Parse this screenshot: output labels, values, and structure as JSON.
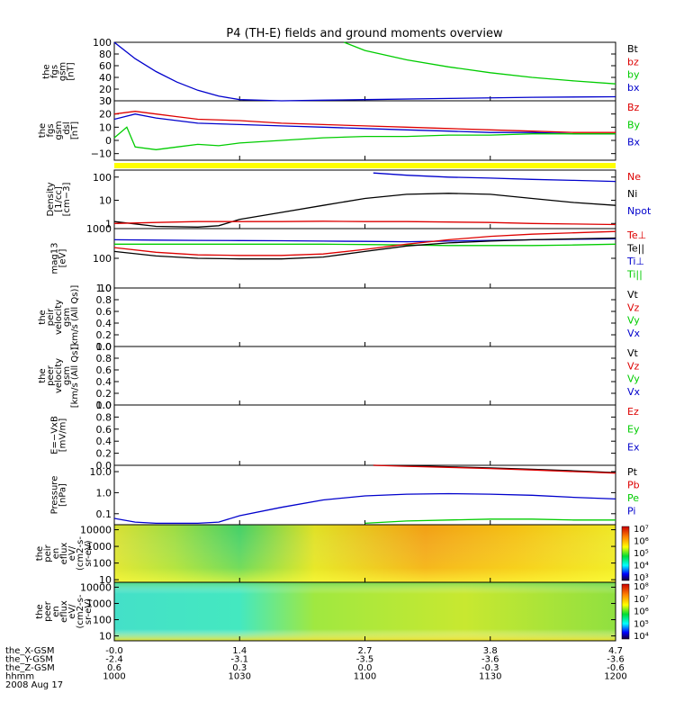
{
  "title": "P4 (TH-E) fields and ground moments overview",
  "colors": {
    "black": "#000000",
    "red": "#dd0000",
    "green": "#00cc00",
    "blue": "#0000cc",
    "yellow": "#ffff00"
  },
  "panels": [
    {
      "id": "p1",
      "ylabel": [
        "the",
        "fgs",
        "gsm",
        "[nT]"
      ],
      "ticks": [
        {
          "v": 0,
          "t": "0"
        },
        {
          "v": 20,
          "t": "20"
        },
        {
          "v": 40,
          "t": "40"
        },
        {
          "v": 60,
          "t": "60"
        },
        {
          "v": 80,
          "t": "80"
        },
        {
          "v": 100,
          "t": "100"
        }
      ],
      "legend": [
        {
          "t": "Bt",
          "c": "black"
        },
        {
          "t": "bz",
          "c": "red"
        },
        {
          "t": "by",
          "c": "green"
        },
        {
          "t": "bx",
          "c": "blue"
        }
      ]
    },
    {
      "id": "p2",
      "ylabel": [
        "the",
        "fgs",
        "gsm",
        "_dsl",
        "[nT]"
      ],
      "ticks": [
        {
          "v": -10,
          "t": "−10"
        },
        {
          "v": 0,
          "t": "0"
        },
        {
          "v": 10,
          "t": "10"
        },
        {
          "v": 20,
          "t": "20"
        },
        {
          "v": 30,
          "t": "30"
        }
      ],
      "legend": [
        {
          "t": "Bz",
          "c": "red"
        },
        {
          "t": "By",
          "c": "green"
        },
        {
          "t": "Bx",
          "c": "blue"
        }
      ]
    },
    {
      "id": "p3",
      "ylabel": [
        "Density",
        "[1/cc]",
        "[cm−3]"
      ],
      "ticks": [
        {
          "v": 1,
          "t": "1"
        },
        {
          "v": 10,
          "t": "10"
        },
        {
          "v": 100,
          "t": "100"
        }
      ],
      "legend": [
        {
          "t": "Ne",
          "c": "red"
        },
        {
          "t": "Ni",
          "c": "black"
        },
        {
          "t": "Npot",
          "c": "blue"
        }
      ]
    },
    {
      "id": "p4",
      "ylabel": [
        "mag13",
        "[eV]"
      ],
      "ticks": [
        {
          "v": 10,
          "t": "10"
        },
        {
          "v": 100,
          "t": "100"
        },
        {
          "v": 1000,
          "t": "1000"
        }
      ],
      "legend": [
        {
          "t": "Te⊥",
          "c": "red"
        },
        {
          "t": "Te||",
          "c": "black"
        },
        {
          "t": "Ti⊥",
          "c": "blue"
        },
        {
          "t": "Ti||",
          "c": "green"
        }
      ]
    },
    {
      "id": "p5",
      "ylabel": [
        "the",
        "peir",
        "velocity",
        "gsm",
        "[km/s (All Qs)]"
      ],
      "ticks": [
        {
          "v": 0,
          "t": "0.0"
        },
        {
          "v": 0.2,
          "t": "0.2"
        },
        {
          "v": 0.4,
          "t": "0.4"
        },
        {
          "v": 0.6,
          "t": "0.6"
        },
        {
          "v": 0.8,
          "t": "0.8"
        },
        {
          "v": 1,
          "t": "1.0"
        }
      ],
      "legend": [
        {
          "t": "Vt",
          "c": "black"
        },
        {
          "t": "Vz",
          "c": "red"
        },
        {
          "t": "Vy",
          "c": "green"
        },
        {
          "t": "Vx",
          "c": "blue"
        }
      ]
    },
    {
      "id": "p6",
      "ylabel": [
        "the",
        "peer",
        "velocity",
        "gsm",
        "[km/s (All Qs)]"
      ],
      "ticks": [
        {
          "v": 0,
          "t": "0.0"
        },
        {
          "v": 0.2,
          "t": "0.2"
        },
        {
          "v": 0.4,
          "t": "0.4"
        },
        {
          "v": 0.6,
          "t": "0.6"
        },
        {
          "v": 0.8,
          "t": "0.8"
        },
        {
          "v": 1,
          "t": "1.0"
        }
      ],
      "legend": [
        {
          "t": "Vt",
          "c": "black"
        },
        {
          "t": "Vz",
          "c": "red"
        },
        {
          "t": "Vy",
          "c": "green"
        },
        {
          "t": "Vx",
          "c": "blue"
        }
      ]
    },
    {
      "id": "p7",
      "ylabel": [
        "E=−VxB",
        "[mV/m]"
      ],
      "ticks": [
        {
          "v": 0,
          "t": "0.0"
        },
        {
          "v": 0.2,
          "t": "0.2"
        },
        {
          "v": 0.4,
          "t": "0.4"
        },
        {
          "v": 0.6,
          "t": "0.6"
        },
        {
          "v": 0.8,
          "t": "0.8"
        },
        {
          "v": 1,
          "t": "1.0"
        }
      ],
      "legend": [
        {
          "t": "Ez",
          "c": "red"
        },
        {
          "t": "Ey",
          "c": "green"
        },
        {
          "t": "Ex",
          "c": "blue"
        }
      ]
    },
    {
      "id": "p8",
      "ylabel": [
        "Pressure",
        "[nPa]"
      ],
      "ticks": [
        {
          "v": 0.1,
          "t": "0.1"
        },
        {
          "v": 1,
          "t": "1.0"
        },
        {
          "v": 10,
          "t": "10.0"
        }
      ],
      "legend": [
        {
          "t": "Pt",
          "c": "black"
        },
        {
          "t": "Pb",
          "c": "red"
        },
        {
          "t": "Pe",
          "c": "green"
        },
        {
          "t": "Pi",
          "c": "blue"
        }
      ]
    },
    {
      "id": "p9",
      "ylabel": [
        "the",
        "peir",
        "en",
        "eflux",
        "eV/",
        "(cm2-s-",
        "sr-eV)"
      ],
      "ticks": [
        {
          "v": 10,
          "t": "10"
        },
        {
          "v": 100,
          "t": "100"
        },
        {
          "v": 1000,
          "t": "1000"
        },
        {
          "v": 10000,
          "t": "10000"
        }
      ],
      "colorbar": [
        {
          "e": "3",
          "t": "10³"
        },
        {
          "e": "4",
          "t": "10⁴"
        },
        {
          "e": "5",
          "t": "10⁵"
        },
        {
          "e": "6",
          "t": "10⁶"
        },
        {
          "e": "7",
          "t": "10⁷"
        }
      ]
    },
    {
      "id": "p10",
      "ylabel": [
        "the",
        "peer",
        "en",
        "eflux",
        "eV/",
        "(cm2-s-",
        "sr-eV)"
      ],
      "ticks": [
        {
          "v": 10,
          "t": "10"
        },
        {
          "v": 100,
          "t": "100"
        },
        {
          "v": 1000,
          "t": "1000"
        },
        {
          "v": 10000,
          "t": "10000"
        }
      ],
      "colorbar": [
        {
          "e": "4",
          "t": "10⁴"
        },
        {
          "e": "5",
          "t": "10⁵"
        },
        {
          "e": "6",
          "t": "10⁶"
        },
        {
          "e": "7",
          "t": "10⁷"
        },
        {
          "e": "8",
          "t": "10⁸"
        }
      ]
    }
  ],
  "xaxis": {
    "rows": [
      {
        "label": "the_X-GSM",
        "values": [
          "-0.0",
          "1.4",
          "2.7",
          "3.8",
          "4.7"
        ]
      },
      {
        "label": "the_Y-GSM",
        "values": [
          "-2.4",
          "-3.1",
          "-3.5",
          "-3.6",
          "-3.6"
        ]
      },
      {
        "label": "the_Z-GSM",
        "values": [
          "0.6",
          "0.3",
          "0.0",
          "-0.3",
          "-0.6"
        ]
      },
      {
        "label": "hhmm",
        "values": [
          "1000",
          "1030",
          "1100",
          "1130",
          "1200"
        ]
      }
    ],
    "date": "2008 Aug 17"
  },
  "chart_data": {
    "type": "line",
    "title": "P4 (TH-E) fields and ground moments overview",
    "x_time_hhmm": [
      "1000",
      "1030",
      "1100",
      "1130",
      "1200"
    ],
    "x_minutes_ticks": [
      0,
      30,
      60,
      90,
      120
    ],
    "series": [
      {
        "panel": "p1",
        "name": "bx",
        "color": "blue",
        "x": [
          0,
          5,
          10,
          15,
          20,
          25,
          30,
          40,
          50,
          60,
          80,
          100,
          120
        ],
        "y": [
          100,
          72,
          50,
          32,
          18,
          8,
          2,
          0,
          1,
          2,
          4,
          6,
          7
        ]
      },
      {
        "panel": "p1",
        "name": "by",
        "color": "green",
        "x": [
          55,
          60,
          70,
          80,
          90,
          100,
          110,
          120
        ],
        "y": [
          100,
          86,
          70,
          58,
          48,
          40,
          34,
          29
        ]
      },
      {
        "panel": "p2",
        "name": "Bz",
        "color": "red",
        "x": [
          0,
          5,
          10,
          15,
          20,
          30,
          40,
          50,
          60,
          70,
          80,
          90,
          100,
          110,
          120
        ],
        "y": [
          20,
          22,
          20,
          18,
          16,
          15,
          13,
          12,
          11,
          10,
          9,
          8,
          7,
          6,
          6
        ]
      },
      {
        "panel": "p2",
        "name": "Bx",
        "color": "blue",
        "x": [
          0,
          5,
          10,
          15,
          20,
          30,
          40,
          50,
          60,
          70,
          80,
          90,
          100,
          110,
          120
        ],
        "y": [
          16,
          20,
          17,
          15,
          13,
          12,
          11,
          10,
          9,
          8,
          7,
          6,
          6,
          5,
          5
        ]
      },
      {
        "panel": "p2",
        "name": "By",
        "color": "green",
        "x": [
          0,
          3,
          5,
          10,
          15,
          20,
          25,
          30,
          40,
          50,
          60,
          70,
          80,
          90,
          100,
          110,
          120
        ],
        "y": [
          2,
          10,
          -5,
          -7,
          -5,
          -3,
          -4,
          -2,
          0,
          2,
          3,
          3,
          4,
          4,
          5,
          5,
          5
        ]
      },
      {
        "panel": "p3",
        "name": "Ni",
        "color": "black",
        "x": [
          0,
          10,
          20,
          25,
          30,
          40,
          50,
          60,
          70,
          80,
          90,
          100,
          110,
          120
        ],
        "y": [
          1.2,
          0.75,
          0.7,
          0.8,
          1.5,
          3,
          6,
          12,
          18,
          20,
          18,
          12,
          8,
          6
        ]
      },
      {
        "panel": "p3",
        "name": "Ne",
        "color": "red",
        "x": [
          0,
          10,
          20,
          30,
          40,
          50,
          60,
          70,
          80,
          90,
          100,
          110,
          120
        ],
        "y": [
          1.0,
          1.1,
          1.2,
          1.2,
          1.2,
          1.25,
          1.2,
          1.2,
          1.15,
          1.1,
          1.0,
          0.95,
          0.9
        ]
      },
      {
        "panel": "p3",
        "name": "Npot",
        "color": "blue",
        "x": [
          62,
          70,
          80,
          90,
          100,
          110,
          120
        ],
        "y": [
          150,
          120,
          100,
          90,
          80,
          72,
          65
        ]
      },
      {
        "panel": "p4",
        "name": "Ti⊥",
        "color": "blue",
        "x": [
          0,
          10,
          20,
          30,
          40,
          50,
          60,
          70,
          80,
          90,
          100,
          110,
          120
        ],
        "y": [
          420,
          410,
          400,
          395,
          390,
          380,
          370,
          360,
          380,
          400,
          420,
          440,
          450
        ]
      },
      {
        "panel": "p4",
        "name": "Ti||",
        "color": "green",
        "x": [
          0,
          10,
          20,
          30,
          40,
          50,
          60,
          70,
          80,
          90,
          100,
          110,
          120
        ],
        "y": [
          300,
          300,
          300,
          300,
          300,
          300,
          290,
          280,
          270,
          270,
          270,
          280,
          300
        ]
      },
      {
        "panel": "p4",
        "name": "Te⊥",
        "color": "red",
        "x": [
          0,
          10,
          20,
          30,
          40,
          50,
          60,
          70,
          80,
          90,
          100,
          110,
          120
        ],
        "y": [
          230,
          160,
          130,
          125,
          125,
          140,
          200,
          300,
          420,
          550,
          650,
          720,
          800
        ]
      },
      {
        "panel": "p4",
        "name": "Te||",
        "color": "black",
        "x": [
          0,
          10,
          20,
          30,
          40,
          50,
          60,
          70,
          80,
          90,
          100,
          110,
          120
        ],
        "y": [
          170,
          120,
          100,
          95,
          95,
          110,
          170,
          260,
          330,
          380,
          420,
          450,
          480
        ]
      },
      {
        "panel": "p8",
        "name": "Pi",
        "color": "blue",
        "x": [
          0,
          5,
          10,
          20,
          25,
          30,
          40,
          50,
          60,
          70,
          80,
          90,
          100,
          110,
          120
        ],
        "y": [
          0.06,
          0.04,
          0.035,
          0.035,
          0.04,
          0.08,
          0.2,
          0.45,
          0.7,
          0.85,
          0.9,
          0.85,
          0.75,
          0.6,
          0.5
        ]
      },
      {
        "panel": "p8",
        "name": "Pe",
        "color": "green",
        "x": [
          60,
          70,
          80,
          90,
          100,
          110,
          120
        ],
        "y": [
          0.035,
          0.045,
          0.05,
          0.055,
          0.055,
          0.05,
          0.05
        ]
      },
      {
        "panel": "p8",
        "name": "Pt",
        "color": "black",
        "x": [
          62,
          70,
          80,
          90,
          100,
          110,
          120
        ],
        "y": [
          22,
          19,
          17,
          15,
          13,
          11,
          9
        ]
      },
      {
        "panel": "p8",
        "name": "Pb",
        "color": "red",
        "x": [
          62,
          70,
          80,
          90,
          100,
          110,
          120
        ],
        "y": [
          21,
          18,
          16,
          14,
          12,
          10,
          8.5
        ]
      }
    ]
  }
}
